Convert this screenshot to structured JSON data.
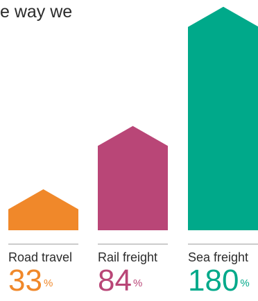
{
  "headline": "e way we",
  "chart_data": {
    "type": "bar",
    "categories": [
      "Road travel",
      "Rail freight",
      "Sea freight"
    ],
    "values": [
      33,
      84,
      180
    ],
    "unit": "%",
    "colors": [
      "#f0882a",
      "#b94677",
      "#00a98a"
    ],
    "divider_color": "#9a9a9a"
  }
}
